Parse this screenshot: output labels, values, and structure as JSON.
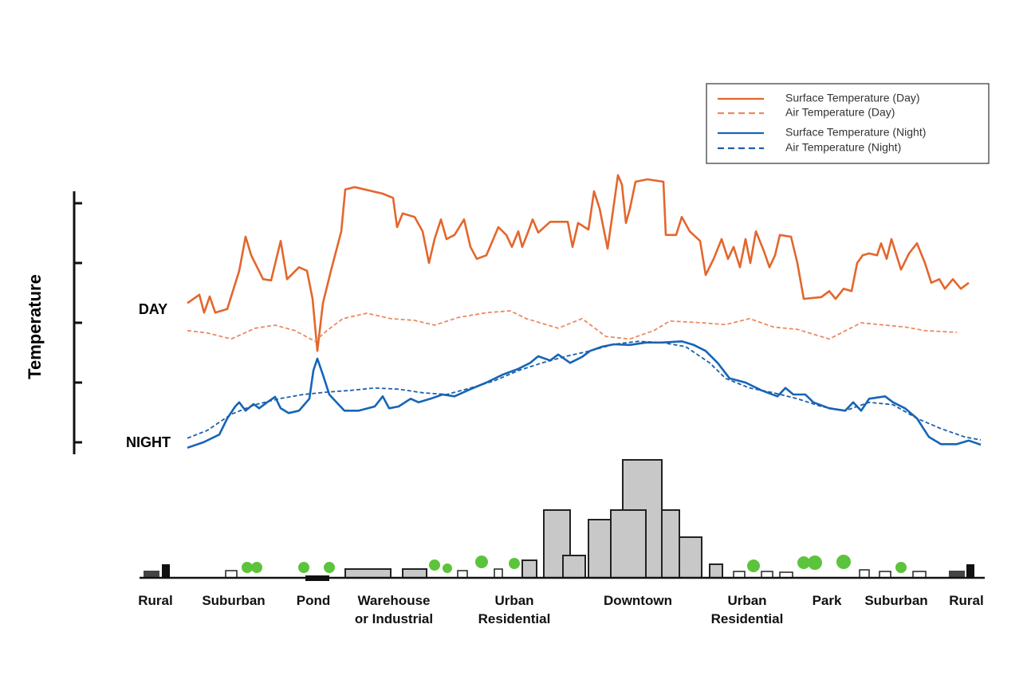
{
  "chart_data": {
    "type": "line",
    "y_label": "Temperature",
    "annotations": [
      "DAY",
      "NIGHT"
    ],
    "xlim": [
      0,
      106
    ],
    "ylim": [
      -0.2,
      4.2
    ],
    "yticks": [
      0,
      1,
      2,
      3,
      4
    ],
    "xticks": [
      {
        "value": 1.5,
        "label": "Rural"
      },
      {
        "value": 11.3,
        "label": "Suburban"
      },
      {
        "value": 21.3,
        "label": "Pond"
      },
      {
        "value": 31.4,
        "label": "Warehouse\nor Industrial"
      },
      {
        "value": 46.5,
        "label": "Urban\nResidential"
      },
      {
        "value": 62,
        "label": "Downtown"
      },
      {
        "value": 75.7,
        "label": "Urban\nResidential"
      },
      {
        "value": 85.7,
        "label": "Park"
      },
      {
        "value": 94.4,
        "label": "Suburban"
      },
      {
        "value": 103.2,
        "label": "Rural"
      }
    ],
    "series": [
      {
        "name": "Surface Temperature (Day)",
        "color": "#e4662c",
        "style": "solid",
        "x": [
          5.5,
          7,
          7.6,
          8.3,
          9,
          10.5,
          12,
          12.8,
          13.5,
          15,
          16,
          17.2,
          18,
          19.5,
          20.5,
          21.2,
          21.8,
          22.5,
          23.5,
          24.8,
          25.3,
          26.5,
          30,
          31.3,
          31.8,
          32.5,
          34,
          35,
          35.8,
          36.5,
          37.3,
          38,
          39,
          40.2,
          41,
          41.8,
          43,
          44.5,
          45.5,
          46.2,
          47,
          47.5,
          48.2,
          48.8,
          49.5,
          51,
          53.2,
          53.8,
          54.5,
          55.8,
          56.5,
          57.2,
          58.2,
          58.8,
          59.5,
          60,
          60.5,
          61,
          61.7,
          63.2,
          65.2,
          65.5,
          66.8,
          67.5,
          68.5,
          69.8,
          70.5,
          71.5,
          72.5,
          73.3,
          74,
          74.8,
          75.5,
          76.1,
          76.8,
          77.8,
          78.5,
          79.2,
          79.8,
          81.2,
          82,
          82.8,
          85,
          86,
          86.8,
          87.8,
          88.8,
          89.5,
          90.2,
          91,
          92,
          92.5,
          93.2,
          93.8,
          95,
          96,
          97,
          98,
          98.8,
          99.8,
          100.5,
          101.5,
          102.5,
          103.5
        ],
        "values": [
          2.33,
          2.47,
          2.17,
          2.44,
          2.17,
          2.23,
          2.87,
          3.44,
          3.13,
          2.73,
          2.71,
          3.37,
          2.73,
          2.93,
          2.87,
          2.4,
          1.53,
          2.33,
          2.87,
          3.53,
          4.23,
          4.27,
          4.16,
          4.09,
          3.6,
          3.83,
          3.77,
          3.53,
          3,
          3.4,
          3.73,
          3.4,
          3.47,
          3.73,
          3.27,
          3.07,
          3.13,
          3.6,
          3.47,
          3.27,
          3.53,
          3.27,
          3.51,
          3.73,
          3.51,
          3.69,
          3.69,
          3.27,
          3.67,
          3.56,
          4.2,
          3.91,
          3.24,
          3.8,
          4.47,
          4.31,
          3.67,
          3.91,
          4.36,
          4.4,
          4.36,
          3.47,
          3.47,
          3.77,
          3.53,
          3.37,
          2.8,
          3.07,
          3.4,
          3.07,
          3.27,
          2.93,
          3.4,
          3,
          3.53,
          3.2,
          2.93,
          3.13,
          3.47,
          3.44,
          3,
          2.4,
          2.43,
          2.53,
          2.4,
          2.57,
          2.53,
          3,
          3.13,
          3.16,
          3.13,
          3.33,
          3.07,
          3.4,
          2.89,
          3.16,
          3.33,
          3,
          2.67,
          2.73,
          2.57,
          2.73,
          2.57,
          2.67
        ]
      },
      {
        "name": "Air Temperature  (Day)",
        "color": "#ec8a60",
        "style": "dashed",
        "x": [
          5.5,
          8,
          11,
          14,
          16.5,
          19,
          21.5,
          23,
          25,
          28,
          31,
          34,
          36.5,
          39.5,
          43,
          46,
          48,
          52,
          55,
          58,
          61,
          64,
          66,
          70,
          73,
          76,
          79,
          82,
          86,
          90,
          93,
          95.5,
          98,
          102
        ],
        "values": [
          1.87,
          1.83,
          1.73,
          1.91,
          1.96,
          1.87,
          1.69,
          1.87,
          2.07,
          2.16,
          2.07,
          2.04,
          1.96,
          2.09,
          2.17,
          2.2,
          2.07,
          1.91,
          2.07,
          1.77,
          1.73,
          1.87,
          2.03,
          2,
          1.97,
          2.07,
          1.93,
          1.89,
          1.73,
          2,
          1.96,
          1.93,
          1.87,
          1.84
        ]
      },
      {
        "name": "Surface Temperature (Night)",
        "color": "#1565b8",
        "style": "solid",
        "x": [
          5.5,
          7.5,
          9.5,
          10.5,
          11.5,
          12,
          12.8,
          13.8,
          14.5,
          15.5,
          16.5,
          17.2,
          18.2,
          19.5,
          20.8,
          21.3,
          21.8,
          22.5,
          23.3,
          24.2,
          25.2,
          27,
          29,
          30,
          30.8,
          32,
          33.5,
          34.5,
          36,
          37.5,
          39,
          41,
          43,
          45,
          47,
          48.5,
          49.5,
          51,
          52,
          53.5,
          55,
          56,
          57.5,
          59,
          61,
          63,
          65,
          67.5,
          69,
          70.5,
          72,
          73.5,
          75.5,
          77.5,
          79.5,
          80.5,
          81.5,
          83,
          84,
          86,
          88,
          89,
          90,
          91,
          93,
          94,
          95.5,
          97,
          98.5,
          100,
          102,
          103.5,
          105
        ],
        "values": [
          -0.09,
          0,
          0.13,
          0.4,
          0.6,
          0.67,
          0.53,
          0.64,
          0.57,
          0.67,
          0.76,
          0.57,
          0.49,
          0.53,
          0.73,
          1.2,
          1.4,
          1.13,
          0.8,
          0.67,
          0.53,
          0.53,
          0.6,
          0.77,
          0.57,
          0.6,
          0.73,
          0.67,
          0.73,
          0.8,
          0.77,
          0.89,
          1,
          1.13,
          1.23,
          1.33,
          1.44,
          1.37,
          1.47,
          1.33,
          1.43,
          1.53,
          1.6,
          1.64,
          1.63,
          1.67,
          1.67,
          1.69,
          1.63,
          1.53,
          1.33,
          1.07,
          1,
          0.87,
          0.77,
          0.91,
          0.8,
          0.8,
          0.67,
          0.57,
          0.53,
          0.67,
          0.53,
          0.73,
          0.77,
          0.67,
          0.57,
          0.4,
          0.09,
          -0.03,
          -0.03,
          0.03,
          -0.04
        ]
      },
      {
        "name": "Air Temperature (Night)",
        "color": "#1f5fa8",
        "style": "dashed",
        "x": [
          5.5,
          8,
          11,
          14,
          17,
          20,
          23,
          26,
          29,
          32,
          35,
          38,
          41,
          44,
          47,
          50,
          53,
          56,
          59,
          62,
          65,
          68,
          71,
          73,
          76,
          79,
          82,
          85,
          88,
          91,
          94,
          97,
          100,
          103,
          105
        ],
        "values": [
          0.07,
          0.2,
          0.47,
          0.63,
          0.73,
          0.8,
          0.84,
          0.87,
          0.91,
          0.89,
          0.83,
          0.8,
          0.91,
          1.03,
          1.2,
          1.33,
          1.44,
          1.53,
          1.64,
          1.69,
          1.67,
          1.6,
          1.33,
          1.07,
          0.91,
          0.83,
          0.73,
          0.6,
          0.53,
          0.67,
          0.63,
          0.4,
          0.23,
          0.09,
          0.04
        ]
      }
    ]
  }
}
